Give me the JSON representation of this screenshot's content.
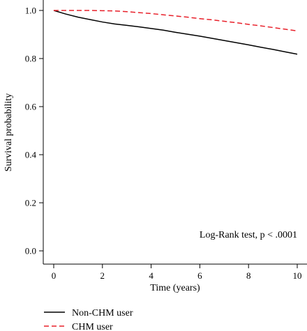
{
  "chart_data": {
    "type": "line",
    "title": "",
    "xlabel": "Time (years)",
    "ylabel": "Survival probability",
    "xlim": [
      0,
      10
    ],
    "ylim": [
      0,
      1.0
    ],
    "x_ticks": [
      0,
      2,
      4,
      6,
      8,
      10
    ],
    "y_ticks": [
      "0.0",
      "0.2",
      "0.4",
      "0.6",
      "0.8",
      "1.0"
    ],
    "grid": false,
    "legend_position": "bottom-left",
    "annotation": "Log-Rank test, p < .0001",
    "series": [
      {
        "name": "Non-CHM user",
        "color": "#000000",
        "style": "solid",
        "x": [
          0,
          0.5,
          1,
          1.5,
          2,
          2.5,
          3,
          3.5,
          4,
          4.5,
          5,
          5.5,
          6,
          6.5,
          7,
          7.5,
          8,
          8.5,
          9,
          9.5,
          10
        ],
        "y": [
          1.0,
          0.985,
          0.972,
          0.962,
          0.952,
          0.944,
          0.938,
          0.932,
          0.925,
          0.918,
          0.909,
          0.901,
          0.893,
          0.884,
          0.875,
          0.866,
          0.857,
          0.847,
          0.838,
          0.828,
          0.818
        ]
      },
      {
        "name": "CHM user",
        "color": "#e8202a",
        "style": "dashed",
        "x": [
          0,
          0.5,
          1,
          1.5,
          2,
          2.5,
          3,
          3.5,
          4,
          4.5,
          5,
          5.5,
          6,
          6.5,
          7,
          7.5,
          8,
          8.5,
          9,
          9.5,
          10
        ],
        "y": [
          1.0,
          1.0,
          1.0,
          1.0,
          0.999,
          0.998,
          0.995,
          0.991,
          0.987,
          0.982,
          0.977,
          0.972,
          0.966,
          0.961,
          0.955,
          0.949,
          0.942,
          0.936,
          0.929,
          0.922,
          0.915
        ]
      }
    ]
  }
}
